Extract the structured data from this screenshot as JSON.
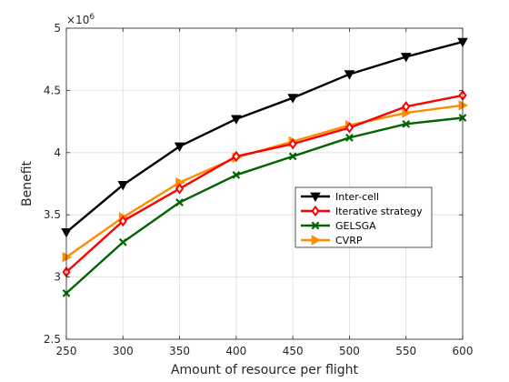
{
  "chart_data": {
    "type": "line",
    "xlabel": "Amount of resource per flight",
    "ylabel": "Benefit",
    "y_exponent_label": "×10",
    "y_exponent_power": "6",
    "x": [
      250,
      300,
      350,
      400,
      450,
      500,
      550,
      600
    ],
    "xlim": [
      250,
      600
    ],
    "ylim": [
      2.5,
      5
    ],
    "xticks": [
      "250",
      "300",
      "350",
      "400",
      "450",
      "500",
      "550",
      "600"
    ],
    "yticks": [
      "2.5",
      "3",
      "3.5",
      "4",
      "4.5",
      "5"
    ],
    "grid": true,
    "legend_position": "right-center",
    "series": [
      {
        "name": "Inter-cell",
        "color": "#000000",
        "marker": "triangle-down",
        "values": [
          3.36,
          3.74,
          4.05,
          4.27,
          4.44,
          4.63,
          4.77,
          4.89
        ]
      },
      {
        "name": "Iterative strategy",
        "color": "#ff0000",
        "marker": "diamond",
        "values": [
          3.04,
          3.45,
          3.71,
          3.97,
          4.07,
          4.2,
          4.37,
          4.46
        ]
      },
      {
        "name": "GELSGA",
        "color": "#006400",
        "marker": "x",
        "values": [
          2.87,
          3.28,
          3.6,
          3.82,
          3.97,
          4.12,
          4.23,
          4.28
        ]
      },
      {
        "name": "CVRP",
        "color": "#ff8c00",
        "marker": "triangle-right",
        "values": [
          3.16,
          3.48,
          3.76,
          3.96,
          4.09,
          4.22,
          4.32,
          4.38
        ]
      }
    ]
  }
}
